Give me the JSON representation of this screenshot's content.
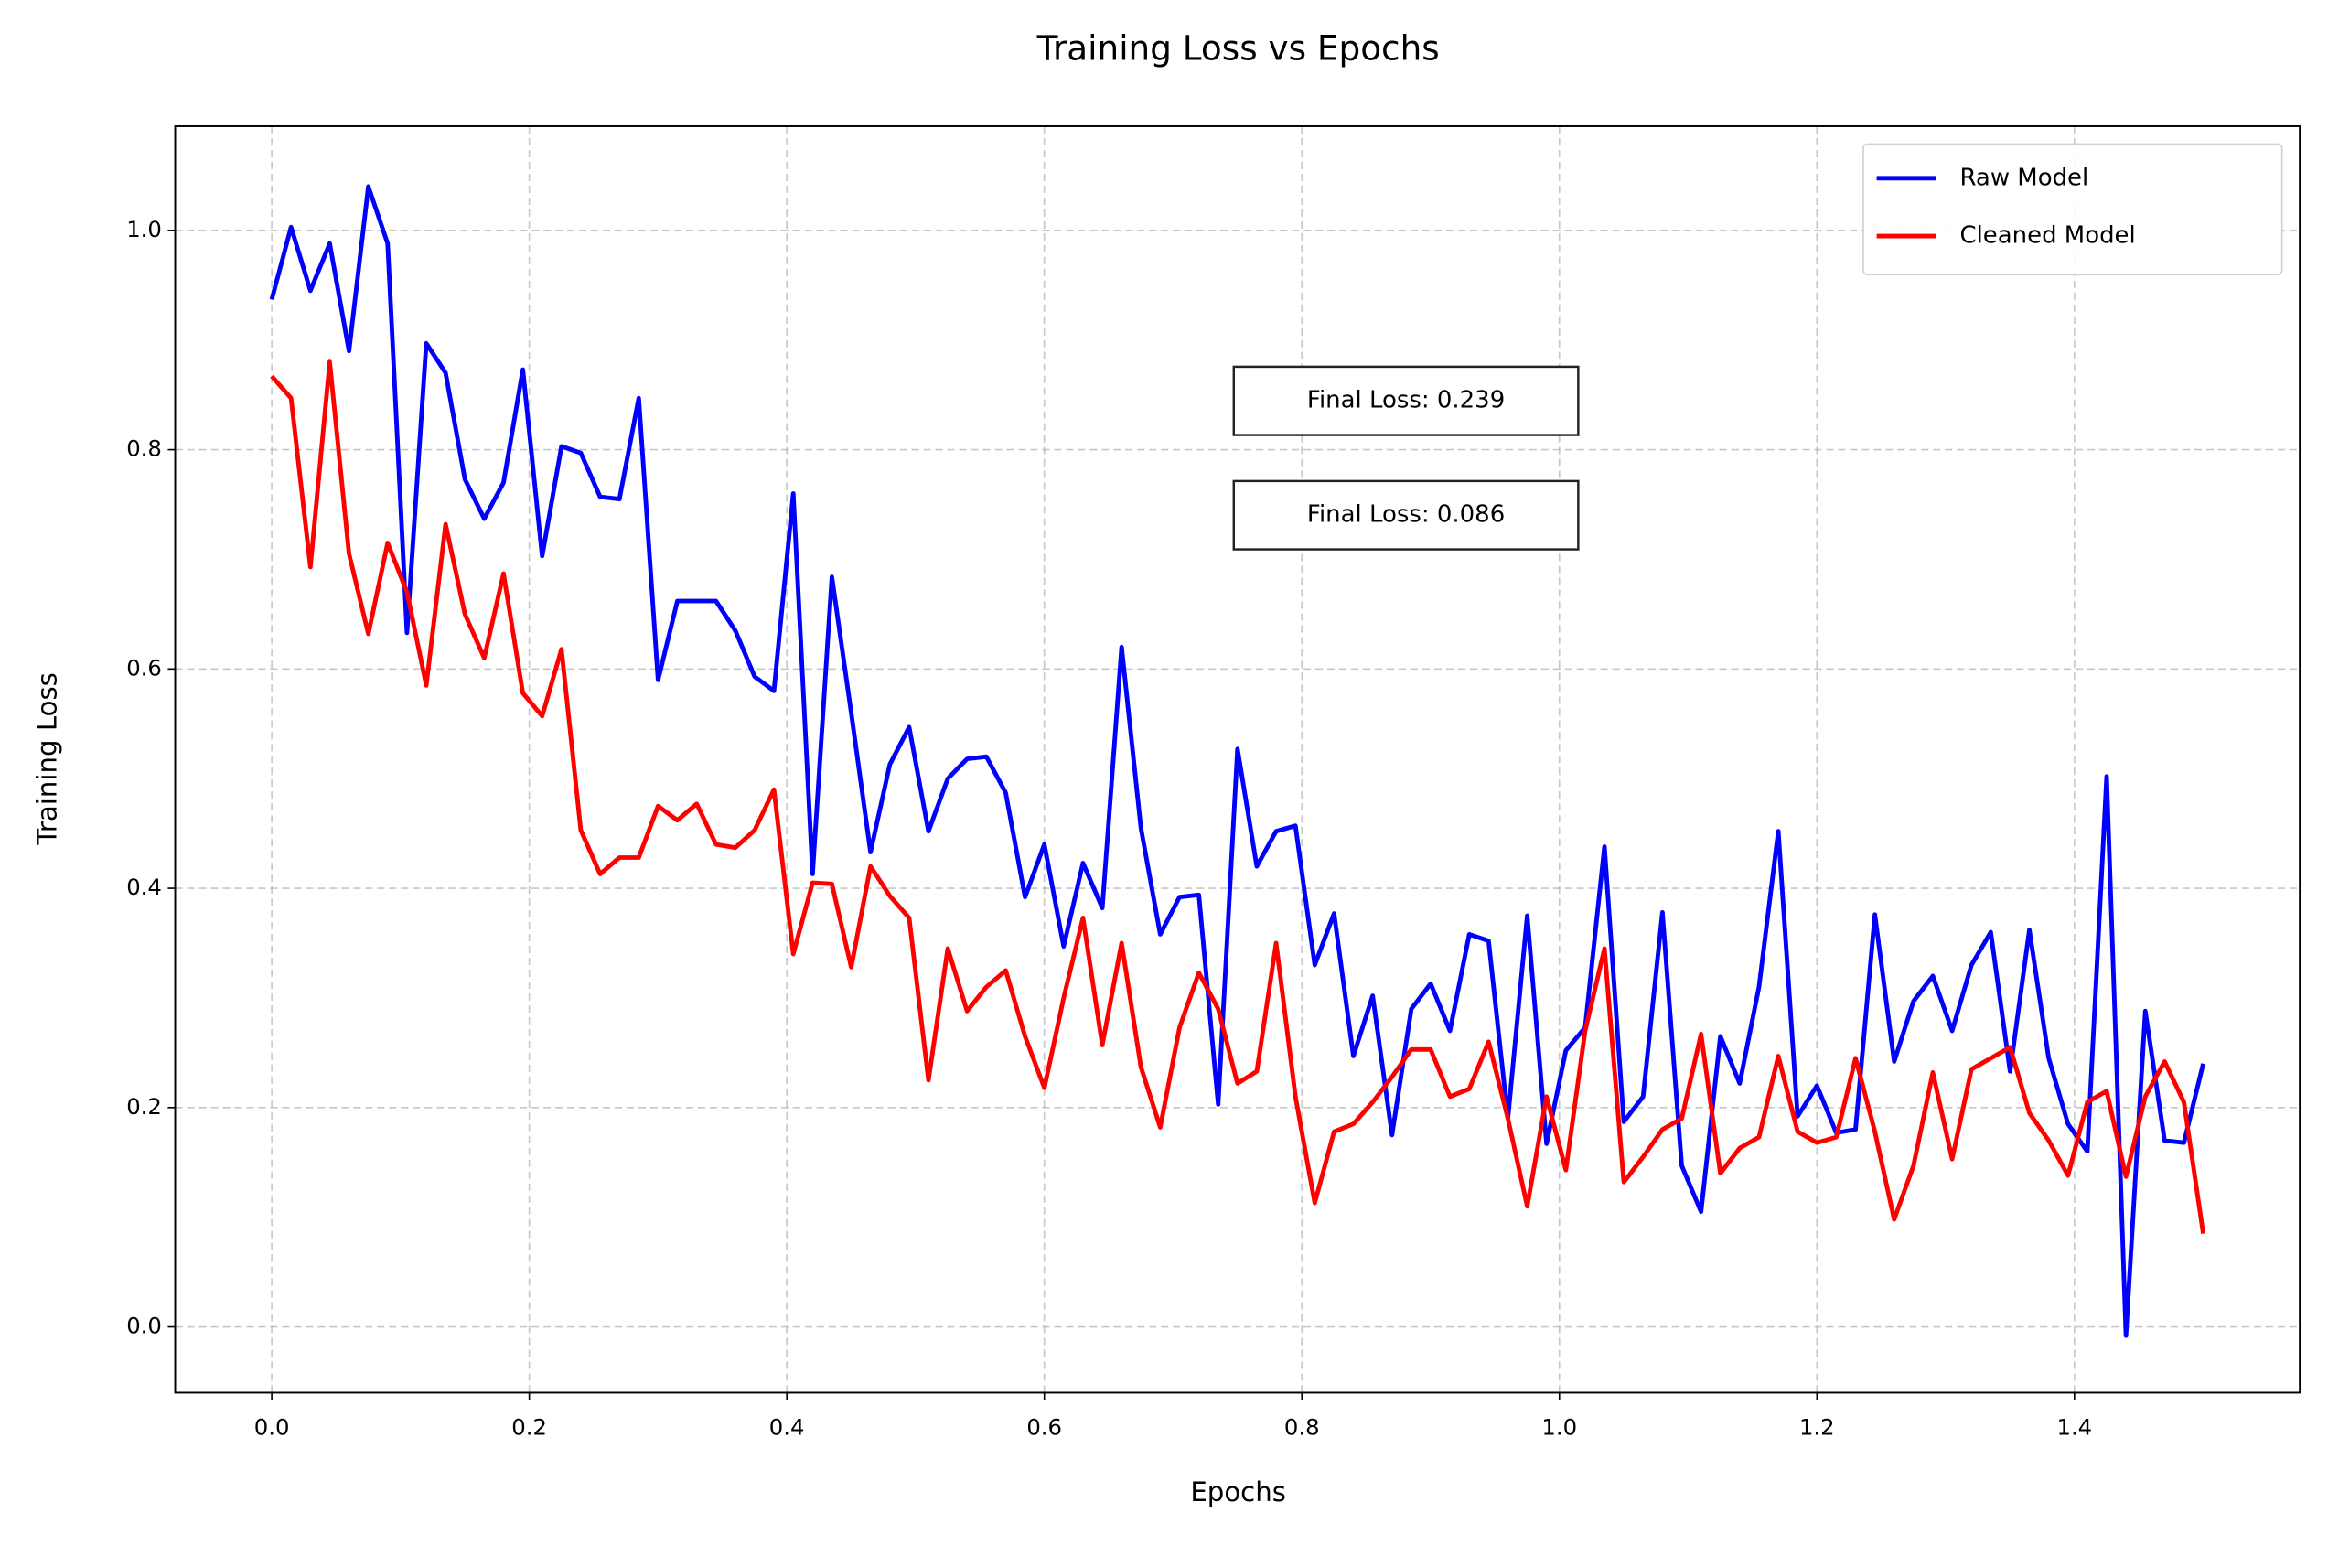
{
  "chart_data": {
    "type": "line",
    "title": "Training Loss vs Epochs",
    "xlabel": "Epochs",
    "ylabel": "Training Loss",
    "x": [
      0,
      0.015,
      0.03,
      0.045,
      0.06,
      0.075,
      0.09,
      0.105,
      0.12,
      0.135,
      0.15,
      0.165,
      0.18,
      0.195,
      0.21,
      0.225,
      0.24,
      0.255,
      0.27,
      0.285,
      0.3,
      0.315,
      0.33,
      0.345,
      0.36,
      0.375,
      0.39,
      0.405,
      0.42,
      0.435,
      0.45,
      0.465,
      0.48,
      0.495,
      0.51,
      0.525,
      0.54,
      0.555,
      0.57,
      0.585,
      0.6,
      0.615,
      0.63,
      0.645,
      0.66,
      0.675,
      0.69,
      0.705,
      0.72,
      0.735,
      0.75,
      0.765,
      0.78,
      0.795,
      0.81,
      0.825,
      0.84,
      0.855,
      0.87,
      0.885,
      0.9,
      0.915,
      0.93,
      0.945,
      0.96,
      0.975,
      0.99,
      1.005,
      1.02,
      1.035,
      1.05,
      1.065,
      1.08,
      1.095,
      1.11,
      1.125,
      1.14,
      1.155,
      1.17,
      1.185,
      1.2,
      1.215,
      1.23,
      1.245,
      1.26,
      1.275,
      1.29,
      1.305,
      1.32,
      1.335,
      1.35,
      1.365,
      1.38,
      1.395,
      1.41,
      1.425,
      1.44,
      1.455,
      1.47,
      1.485,
      1.5
    ],
    "series": [
      {
        "name": "Raw Model",
        "color": "#0000ff",
        "values": [
          0.937,
          1.003,
          0.945,
          0.988,
          0.89,
          1.04,
          0.988,
          0.633,
          0.897,
          0.87,
          0.773,
          0.737,
          0.77,
          0.873,
          0.703,
          0.803,
          0.797,
          0.757,
          0.755,
          0.847,
          0.59,
          0.662,
          0.662,
          0.662,
          0.635,
          0.593,
          0.58,
          0.76,
          0.413,
          0.684,
          0.56,
          0.433,
          0.513,
          0.547,
          0.452,
          0.5,
          0.518,
          0.52,
          0.487,
          0.392,
          0.44,
          0.347,
          0.423,
          0.382,
          0.62,
          0.455,
          0.358,
          0.392,
          0.394,
          0.203,
          0.527,
          0.42,
          0.452,
          0.457,
          0.33,
          0.377,
          0.247,
          0.302,
          0.175,
          0.29,
          0.313,
          0.27,
          0.358,
          0.352,
          0.19,
          0.375,
          0.167,
          0.252,
          0.273,
          0.438,
          0.187,
          0.21,
          0.378,
          0.147,
          0.105,
          0.265,
          0.222,
          0.31,
          0.452,
          0.192,
          0.22,
          0.177,
          0.18,
          0.376,
          0.242,
          0.297,
          0.32,
          0.27,
          0.33,
          0.36,
          0.233,
          0.362,
          0.245,
          0.185,
          0.16,
          0.502,
          -0.008,
          0.288,
          0.17,
          0.168,
          0.24
        ]
      },
      {
        "name": "Cleaned Model",
        "color": "#ff0000",
        "values": [
          0.867,
          0.847,
          0.693,
          0.88,
          0.705,
          0.632,
          0.715,
          0.67,
          0.585,
          0.732,
          0.65,
          0.61,
          0.687,
          0.578,
          0.557,
          0.618,
          0.453,
          0.413,
          0.428,
          0.428,
          0.475,
          0.462,
          0.477,
          0.44,
          0.437,
          0.453,
          0.49,
          0.34,
          0.405,
          0.404,
          0.328,
          0.42,
          0.393,
          0.373,
          0.225,
          0.345,
          0.288,
          0.31,
          0.325,
          0.265,
          0.218,
          0.3,
          0.373,
          0.257,
          0.35,
          0.237,
          0.182,
          0.273,
          0.323,
          0.29,
          0.222,
          0.233,
          0.35,
          0.21,
          0.113,
          0.178,
          0.185,
          0.205,
          0.228,
          0.253,
          0.253,
          0.21,
          0.217,
          0.26,
          0.19,
          0.11,
          0.21,
          0.143,
          0.27,
          0.345,
          0.132,
          0.155,
          0.18,
          0.19,
          0.267,
          0.14,
          0.163,
          0.173,
          0.247,
          0.178,
          0.168,
          0.173,
          0.245,
          0.178,
          0.098,
          0.147,
          0.232,
          0.153,
          0.235,
          0.245,
          0.255,
          0.195,
          0.17,
          0.138,
          0.205,
          0.215,
          0.137,
          0.21,
          0.242,
          0.205,
          0.085
        ]
      }
    ],
    "annotations": [
      {
        "text": "Final Loss: 0.239",
        "color": "#0000ff"
      },
      {
        "text": "Final Loss: 0.086",
        "color": "#ff0000"
      }
    ],
    "xlim": [
      -0.075,
      1.575
    ],
    "xticks": [
      {
        "value": 0,
        "label": "0.0"
      },
      0.2,
      0.4,
      0.6,
      0.8,
      {
        "value": 1,
        "label": "1.0"
      },
      1.2,
      1.4
    ],
    "ylim": [
      -0.06,
      1.095
    ],
    "yticks": [
      {
        "value": 0,
        "label": "0.0"
      },
      0.2,
      0.4,
      0.6,
      0.8,
      {
        "value": 1,
        "label": "1.0"
      }
    ],
    "grid": true,
    "legend": "upper right"
  }
}
